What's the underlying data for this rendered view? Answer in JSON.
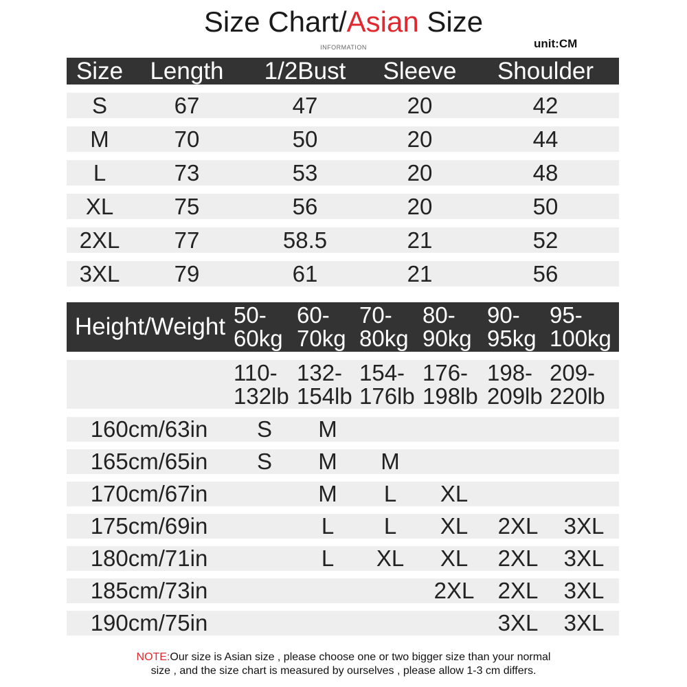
{
  "title": {
    "part1": "Size Chart/",
    "accent": "Asian",
    "part2": " Size",
    "accent_color": "#e0282e"
  },
  "subtitle": "INFORMATION",
  "unit": "unit:CM",
  "size_table": {
    "headers": [
      "Size",
      "Length",
      "1/2Bust",
      "Sleeve",
      "Shoulder"
    ],
    "rows": [
      [
        "S",
        "67",
        "47",
        "20",
        "42"
      ],
      [
        "M",
        "70",
        "50",
        "20",
        "44"
      ],
      [
        "L",
        "73",
        "53",
        "20",
        "48"
      ],
      [
        "XL",
        "75",
        "56",
        "20",
        "50"
      ],
      [
        "2XL",
        "77",
        "58.5",
        "21",
        "52"
      ],
      [
        "3XL",
        "79",
        "61",
        "21",
        "56"
      ]
    ]
  },
  "fit_table": {
    "header_label": "Height/Weight",
    "kg": [
      [
        "50-",
        "60kg"
      ],
      [
        "60-",
        "70kg"
      ],
      [
        "70-",
        "80kg"
      ],
      [
        "80-",
        "90kg"
      ],
      [
        "90-",
        "95kg"
      ],
      [
        "95-",
        "100kg"
      ]
    ],
    "lb": [
      [
        "110-",
        "132lb"
      ],
      [
        "132-",
        "154lb"
      ],
      [
        "154-",
        "176lb"
      ],
      [
        "176-",
        "198lb"
      ],
      [
        "198-",
        "209lb"
      ],
      [
        "209-",
        "220lb"
      ]
    ],
    "rows": [
      {
        "height": "160cm/63in",
        "sizes": [
          "S",
          "M",
          "",
          "",
          "",
          ""
        ]
      },
      {
        "height": "165cm/65in",
        "sizes": [
          "S",
          "M",
          "M",
          "",
          "",
          ""
        ]
      },
      {
        "height": "170cm/67in",
        "sizes": [
          "",
          "M",
          "L",
          "XL",
          "",
          ""
        ]
      },
      {
        "height": "175cm/69in",
        "sizes": [
          "",
          "L",
          "L",
          "XL",
          "2XL",
          "3XL"
        ]
      },
      {
        "height": "180cm/71in",
        "sizes": [
          "",
          "L",
          "XL",
          "XL",
          "2XL",
          "3XL"
        ]
      },
      {
        "height": "185cm/73in",
        "sizes": [
          "",
          "",
          "",
          "2XL",
          "2XL",
          "3XL"
        ]
      },
      {
        "height": "190cm/75in",
        "sizes": [
          "",
          "",
          "",
          "",
          "3XL",
          "3XL"
        ]
      }
    ]
  },
  "note": {
    "label": "NOTE:",
    "line1": "Our size is Asian size , please choose one or two bigger size than your normal",
    "line2": "size , and the size chart is measured by ourselves , please allow 1-3 cm differs."
  }
}
